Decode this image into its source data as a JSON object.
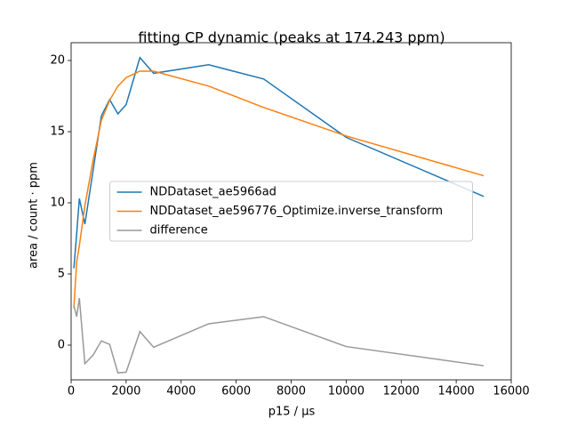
{
  "chart_data": {
    "type": "line",
    "title": "fitting CP dynamic (peaks at 174.243 ppm)",
    "xlabel": "p15 / µs",
    "ylabel": "area / count · ppm",
    "x": [
      100,
      200,
      300,
      500,
      800,
      1100,
      1400,
      1700,
      2000,
      2500,
      3000,
      5000,
      7000,
      10000,
      15000
    ],
    "series": [
      {
        "name": "NDDataset_ae5966ad",
        "color": "#1f77b4",
        "values": [
          5.4,
          7.8,
          10.3,
          8.5,
          12.3,
          16.1,
          17.25,
          16.25,
          16.9,
          20.2,
          19.1,
          19.7,
          18.7,
          14.6,
          10.45
        ]
      },
      {
        "name": "NDDataset_ae596776_Optimize.inverse_transform",
        "color": "#ff7f0e",
        "values": [
          2.6,
          5.8,
          7.0,
          9.8,
          13.0,
          15.8,
          17.2,
          18.2,
          18.8,
          19.25,
          19.25,
          18.2,
          16.7,
          14.7,
          11.9
        ]
      },
      {
        "name": "difference",
        "color": "#999999",
        "values": [
          2.8,
          2.0,
          3.3,
          -1.3,
          -0.7,
          0.3,
          0.05,
          -1.95,
          -1.9,
          0.95,
          -0.15,
          1.5,
          2.0,
          -0.1,
          -1.45
        ]
      }
    ],
    "xlim": [
      0,
      16000
    ],
    "xticks": [
      0,
      2000,
      4000,
      6000,
      8000,
      10000,
      12000,
      14000,
      16000
    ],
    "ylim": [
      -2.44,
      21.25
    ],
    "yticks": [
      0,
      5,
      10,
      15,
      20
    ],
    "legend": "center"
  }
}
